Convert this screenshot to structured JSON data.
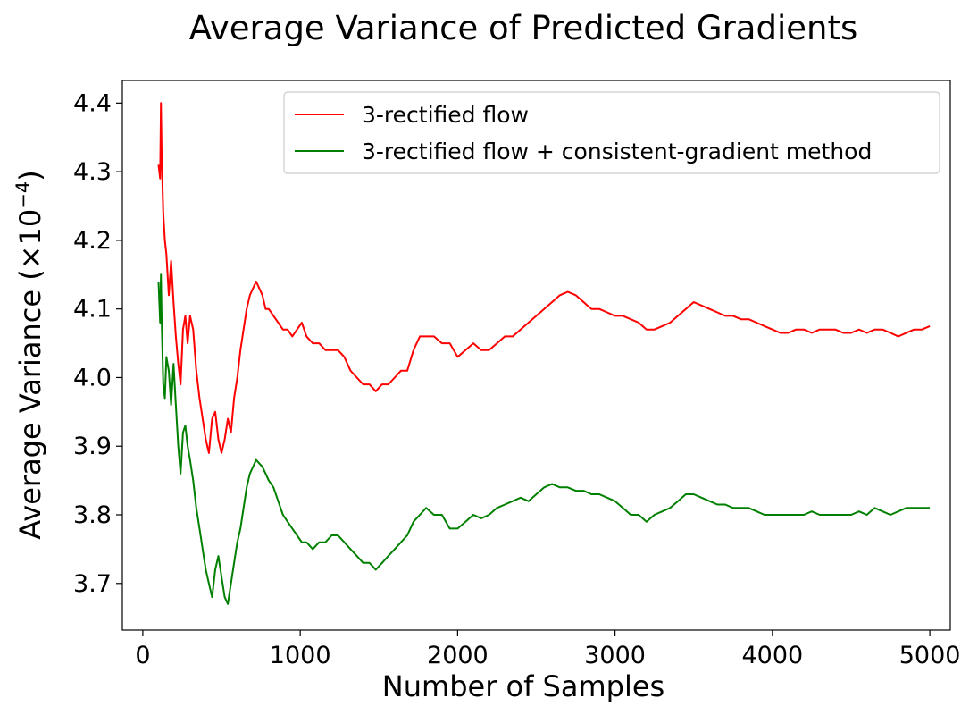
{
  "chart_data": {
    "type": "line",
    "title": "Average Variance of Predicted Gradients",
    "xlabel": "Number of Samples",
    "ylabel": "Average Variance (×10",
    "ylabel_exponent": "−4",
    "ylabel_suffix": ")",
    "xlim": [
      -130,
      5130
    ],
    "ylim": [
      3.632,
      4.433
    ],
    "xticks": [
      0,
      1000,
      2000,
      3000,
      4000,
      5000
    ],
    "xtick_labels": [
      "0",
      "1000",
      "2000",
      "3000",
      "4000",
      "5000"
    ],
    "yticks": [
      3.7,
      3.8,
      3.9,
      4.0,
      4.1,
      4.2,
      4.3,
      4.4
    ],
    "ytick_labels": [
      "3.7",
      "3.8",
      "3.9",
      "4.0",
      "4.1",
      "4.2",
      "4.3",
      "4.4"
    ],
    "grid": false,
    "legend_position": "upper-right",
    "series": [
      {
        "name": "3-rectified flow",
        "color": "#ff0000",
        "x": [
          100,
          110,
          115,
          120,
          130,
          140,
          150,
          165,
          180,
          195,
          210,
          225,
          240,
          255,
          270,
          285,
          300,
          320,
          340,
          360,
          380,
          400,
          420,
          440,
          460,
          480,
          500,
          520,
          540,
          560,
          580,
          600,
          620,
          640,
          660,
          680,
          700,
          720,
          740,
          760,
          780,
          800,
          830,
          860,
          890,
          920,
          950,
          980,
          1010,
          1040,
          1080,
          1120,
          1160,
          1200,
          1240,
          1280,
          1320,
          1360,
          1400,
          1440,
          1480,
          1520,
          1560,
          1600,
          1640,
          1680,
          1720,
          1760,
          1800,
          1850,
          1900,
          1950,
          2000,
          2050,
          2100,
          2150,
          2200,
          2250,
          2300,
          2350,
          2400,
          2450,
          2500,
          2550,
          2600,
          2650,
          2700,
          2750,
          2800,
          2850,
          2900,
          2950,
          3000,
          3050,
          3100,
          3150,
          3200,
          3250,
          3300,
          3350,
          3400,
          3450,
          3500,
          3550,
          3600,
          3650,
          3700,
          3750,
          3800,
          3850,
          3900,
          3950,
          4000,
          4050,
          4100,
          4150,
          4200,
          4250,
          4300,
          4350,
          4400,
          4450,
          4500,
          4550,
          4600,
          4650,
          4700,
          4750,
          4800,
          4850,
          4900,
          4950,
          5000
        ],
        "values": [
          4.31,
          4.29,
          4.4,
          4.32,
          4.24,
          4.2,
          4.18,
          4.12,
          4.17,
          4.11,
          4.06,
          4.02,
          3.99,
          4.07,
          4.09,
          4.05,
          4.09,
          4.07,
          4.01,
          3.97,
          3.94,
          3.91,
          3.89,
          3.94,
          3.95,
          3.91,
          3.89,
          3.91,
          3.94,
          3.92,
          3.97,
          4.0,
          4.04,
          4.07,
          4.1,
          4.12,
          4.13,
          4.14,
          4.13,
          4.12,
          4.1,
          4.1,
          4.09,
          4.08,
          4.07,
          4.07,
          4.06,
          4.07,
          4.08,
          4.06,
          4.05,
          4.05,
          4.04,
          4.04,
          4.04,
          4.03,
          4.01,
          4.0,
          3.99,
          3.99,
          3.98,
          3.99,
          3.99,
          4.0,
          4.01,
          4.01,
          4.04,
          4.06,
          4.06,
          4.06,
          4.05,
          4.05,
          4.03,
          4.04,
          4.05,
          4.04,
          4.04,
          4.05,
          4.06,
          4.06,
          4.07,
          4.08,
          4.09,
          4.1,
          4.11,
          4.12,
          4.125,
          4.12,
          4.11,
          4.1,
          4.1,
          4.095,
          4.09,
          4.09,
          4.085,
          4.08,
          4.07,
          4.07,
          4.075,
          4.08,
          4.09,
          4.1,
          4.11,
          4.105,
          4.1,
          4.095,
          4.09,
          4.09,
          4.085,
          4.085,
          4.08,
          4.075,
          4.07,
          4.065,
          4.065,
          4.07,
          4.07,
          4.065,
          4.07,
          4.07,
          4.07,
          4.065,
          4.065,
          4.07,
          4.065,
          4.07,
          4.07,
          4.065,
          4.06,
          4.065,
          4.07,
          4.07,
          4.075
        ]
      },
      {
        "name": "3-rectified flow + consistent-gradient method",
        "color": "#008000",
        "x": [
          100,
          110,
          115,
          120,
          130,
          140,
          150,
          165,
          180,
          195,
          210,
          225,
          240,
          255,
          270,
          285,
          300,
          320,
          340,
          360,
          380,
          400,
          420,
          440,
          460,
          480,
          500,
          520,
          540,
          560,
          580,
          600,
          620,
          640,
          660,
          680,
          700,
          720,
          740,
          760,
          780,
          800,
          830,
          860,
          890,
          920,
          950,
          980,
          1010,
          1040,
          1080,
          1120,
          1160,
          1200,
          1240,
          1280,
          1320,
          1360,
          1400,
          1440,
          1480,
          1520,
          1560,
          1600,
          1640,
          1680,
          1720,
          1760,
          1800,
          1850,
          1900,
          1950,
          2000,
          2050,
          2100,
          2150,
          2200,
          2250,
          2300,
          2350,
          2400,
          2450,
          2500,
          2550,
          2600,
          2650,
          2700,
          2750,
          2800,
          2850,
          2900,
          2950,
          3000,
          3050,
          3100,
          3150,
          3200,
          3250,
          3300,
          3350,
          3400,
          3450,
          3500,
          3550,
          3600,
          3650,
          3700,
          3750,
          3800,
          3850,
          3900,
          3950,
          4000,
          4050,
          4100,
          4150,
          4200,
          4250,
          4300,
          4350,
          4400,
          4450,
          4500,
          4550,
          4600,
          4650,
          4700,
          4750,
          4800,
          4850,
          4900,
          4950,
          5000
        ],
        "values": [
          4.14,
          4.08,
          4.15,
          4.08,
          3.99,
          3.97,
          4.03,
          4.01,
          3.96,
          4.02,
          3.96,
          3.9,
          3.86,
          3.92,
          3.93,
          3.9,
          3.88,
          3.85,
          3.81,
          3.78,
          3.75,
          3.72,
          3.7,
          3.68,
          3.72,
          3.74,
          3.71,
          3.68,
          3.67,
          3.7,
          3.73,
          3.76,
          3.78,
          3.81,
          3.84,
          3.86,
          3.87,
          3.88,
          3.875,
          3.87,
          3.86,
          3.85,
          3.84,
          3.82,
          3.8,
          3.79,
          3.78,
          3.77,
          3.76,
          3.76,
          3.75,
          3.76,
          3.76,
          3.77,
          3.77,
          3.76,
          3.75,
          3.74,
          3.73,
          3.73,
          3.72,
          3.73,
          3.74,
          3.75,
          3.76,
          3.77,
          3.79,
          3.8,
          3.81,
          3.8,
          3.8,
          3.78,
          3.78,
          3.79,
          3.8,
          3.795,
          3.8,
          3.81,
          3.815,
          3.82,
          3.825,
          3.82,
          3.83,
          3.84,
          3.845,
          3.84,
          3.84,
          3.835,
          3.835,
          3.83,
          3.83,
          3.825,
          3.82,
          3.81,
          3.8,
          3.8,
          3.79,
          3.8,
          3.805,
          3.81,
          3.82,
          3.83,
          3.83,
          3.825,
          3.82,
          3.815,
          3.815,
          3.81,
          3.81,
          3.81,
          3.805,
          3.8,
          3.8,
          3.8,
          3.8,
          3.8,
          3.8,
          3.805,
          3.8,
          3.8,
          3.8,
          3.8,
          3.8,
          3.805,
          3.8,
          3.81,
          3.805,
          3.8,
          3.805,
          3.81,
          3.81,
          3.81,
          3.81
        ]
      }
    ]
  }
}
